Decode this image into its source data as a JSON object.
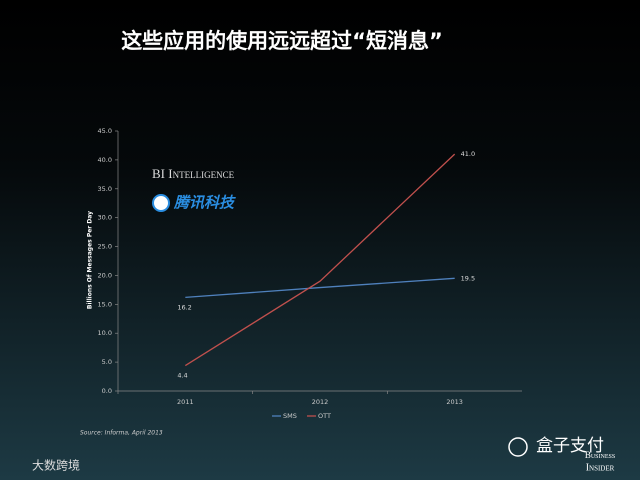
{
  "chart_data": {
    "type": "line",
    "title": "这些应用的使用远远超过“短消息”",
    "y_label": "Billions Of Messages Per Day",
    "categories": [
      "2011",
      "2012",
      "2013"
    ],
    "series": [
      {
        "name": "SMS",
        "color": "#4f81bd",
        "values": [
          16.2,
          17.9,
          19.5
        ],
        "value_labels": [
          "16.2",
          null,
          "19.5"
        ]
      },
      {
        "name": "OTT",
        "color": "#c0504d",
        "values": [
          4.4,
          19.0,
          41.0
        ],
        "value_labels": [
          "4.4",
          null,
          "41.0"
        ]
      }
    ],
    "ylim": [
      0,
      45
    ],
    "yticks": [
      {
        "value": 0,
        "label": "0.0"
      },
      {
        "value": 5,
        "label": "5.0"
      },
      {
        "value": 10,
        "label": "10.0"
      },
      {
        "value": 15,
        "label": "15.0"
      },
      {
        "value": 20,
        "label": "20.0"
      },
      {
        "value": 25,
        "label": "25.0"
      },
      {
        "value": 30,
        "label": "30.0"
      },
      {
        "value": 35,
        "label": "35.0"
      },
      {
        "value": 40,
        "label": "40.0"
      },
      {
        "value": 45,
        "label": "45.0"
      }
    ],
    "source": "Source: Informa, April 2013",
    "legend": "bottom"
  },
  "logos": {
    "bi_intelligence": "BI Intelligence",
    "tencent": "腾讯科技",
    "wechat": "盒子支付",
    "business": "Business",
    "insider": "Insider",
    "corner": "大数跨境"
  }
}
